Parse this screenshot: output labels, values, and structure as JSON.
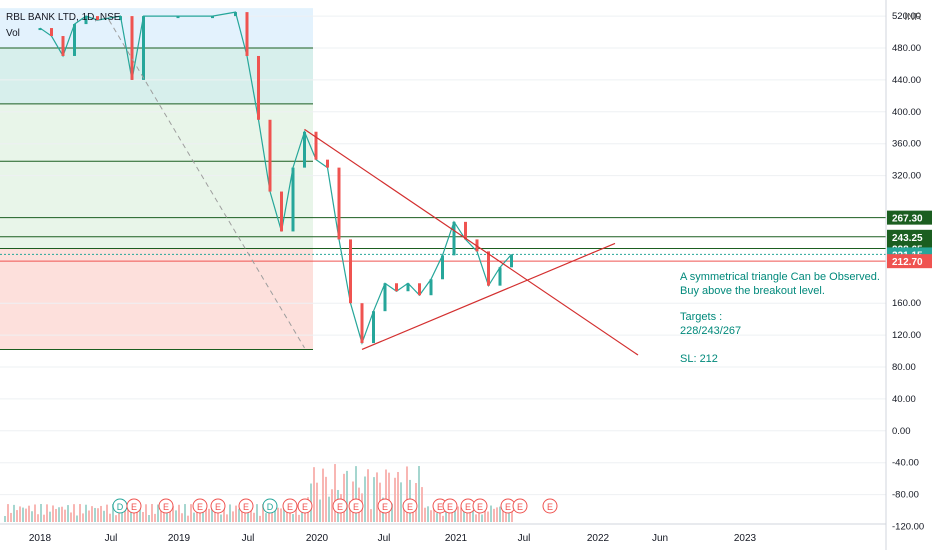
{
  "header": {
    "symbol_line": "RBL BANK LTD, 1D, NSE",
    "volume_label": "Vol"
  },
  "currency_badge": "INR",
  "annotation": {
    "lines": [
      "A symmetrical triangle Can be Observed.",
      "Buy above the breakout level."
    ],
    "targets_label": "Targets :",
    "targets_value": "228/243/267",
    "stoploss": "SL: 212"
  },
  "colors": {
    "up": "#26a69a",
    "down": "#ef5350",
    "trendline": "#d32f2f",
    "level": "#1b5e20",
    "text_annotation": "#00897b",
    "zone_blue": "#e3f2fd",
    "zone_teal": "#d7efec",
    "zone_green": "#e8f5e9",
    "zone_red": "#fde0dc"
  },
  "chart_data": {
    "type": "candlestick",
    "x_axis_ticks": [
      "2018",
      "Jul",
      "2019",
      "Jul",
      "2020",
      "Jul",
      "2021",
      "Jul",
      "2022",
      "Jun",
      "2023"
    ],
    "y_axis_ticks": [
      520,
      480,
      440,
      400,
      360,
      320,
      160,
      120,
      80,
      40,
      0,
      -40,
      -80,
      -120
    ],
    "y_axis_ticks_text": [
      "520.00",
      "480.00",
      "440.00",
      "400.00",
      "360.00",
      "320.00",
      "160.00",
      "120.00",
      "80.00",
      "40.00",
      "0.00",
      "-40.00",
      "-80.00",
      "-120.00"
    ],
    "y_range": [
      -130,
      530
    ],
    "price_labels": [
      {
        "text": "267.30",
        "value": 267.3,
        "color": "#1b5e20"
      },
      {
        "text": "243.25",
        "value": 243.25,
        "color": "#1b5e20"
      },
      {
        "text": "228.65",
        "value": 228.65,
        "color": "#1b5e20"
      },
      {
        "text": "221.15",
        "value": 221.15,
        "color": "#26a69a"
      },
      {
        "text": "212.70",
        "value": 212.7,
        "color": "#ef5350"
      }
    ],
    "horizontal_levels": [
      480,
      410,
      338,
      267.3,
      243.25,
      228.65,
      221.15,
      212.7,
      102
    ],
    "price_points": [
      [
        "2018-01",
        505
      ],
      [
        "2018-02",
        495
      ],
      [
        "2018-03",
        470
      ],
      [
        "2018-04",
        510
      ],
      [
        "2018-05",
        520
      ],
      [
        "2018-06",
        515
      ],
      [
        "2018-08",
        520
      ],
      [
        "2018-09",
        440
      ],
      [
        "2018-10",
        520
      ],
      [
        "2019-01",
        520
      ],
      [
        "2019-04",
        520
      ],
      [
        "2019-06",
        525
      ],
      [
        "2019-07",
        470
      ],
      [
        "2019-08",
        390
      ],
      [
        "2019-09",
        300
      ],
      [
        "2019-10",
        250
      ],
      [
        "2019-11",
        330
      ],
      [
        "2019-12",
        375
      ],
      [
        "2020-01",
        340
      ],
      [
        "2020-02",
        330
      ],
      [
        "2020-03",
        240
      ],
      [
        "2020-04",
        160
      ],
      [
        "2020-05",
        110
      ],
      [
        "2020-06",
        150
      ],
      [
        "2020-07",
        185
      ],
      [
        "2020-08",
        175
      ],
      [
        "2020-09",
        185
      ],
      [
        "2020-10",
        170
      ],
      [
        "2020-11",
        190
      ],
      [
        "2020-12",
        220
      ],
      [
        "2021-01",
        262
      ],
      [
        "2021-02",
        240
      ],
      [
        "2021-03",
        225
      ],
      [
        "2021-04",
        182
      ],
      [
        "2021-05",
        205
      ],
      [
        "2021-06",
        221.15
      ]
    ],
    "triangle_lines": [
      {
        "name": "",
        "from": [
          "2019-12",
          378
        ],
        "to": [
          "2022-05",
          95
        ]
      },
      {
        "name": "",
        "from": [
          "2020-05",
          102
        ],
        "to": [
          "2022-03",
          235
        ]
      }
    ],
    "fib_dash_line": {
      "from": [
        "2018-07",
        515
      ],
      "to": [
        "2019-12",
        104
      ]
    },
    "event_markers": [
      "D",
      "E",
      "E",
      "E",
      "E",
      "E",
      "D",
      "E",
      "E",
      "E",
      "E",
      "E",
      "E",
      "E",
      "E",
      "E",
      "E",
      "E",
      "E",
      "E"
    ],
    "grid": true
  }
}
